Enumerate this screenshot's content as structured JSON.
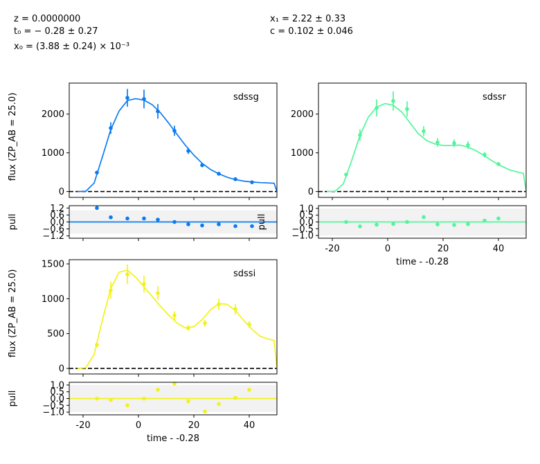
{
  "params": {
    "z": "z = 0.0000000",
    "t0": "t₀ = − 0.28 ± 0.27",
    "x0": "x₀ = (3.88 ± 0.24) × 10⁻³",
    "x1": "x₁ = 2.22 ± 0.33",
    "c": "c = 0.102 ± 0.046"
  },
  "colors": {
    "sdssg": "#0a7bf0",
    "sdssr": "#52f59b",
    "sdssi": "#f2f21a"
  },
  "chart_data": [
    {
      "type": "scatter",
      "band": "sdssg",
      "title": "sdssg",
      "xlabel": "",
      "ylabel": "flux (ZP_AB = 25.0)",
      "xlim": [
        -25,
        50
      ],
      "ylim": [
        -150,
        2800
      ],
      "yticks": [
        0,
        1000,
        2000
      ],
      "points": [
        {
          "x": -15,
          "y": 490,
          "err": 40
        },
        {
          "x": -10,
          "y": 1640,
          "err": 150
        },
        {
          "x": -4,
          "y": 2420,
          "err": 230
        },
        {
          "x": 2,
          "y": 2390,
          "err": 240
        },
        {
          "x": 7,
          "y": 2070,
          "err": 190
        },
        {
          "x": 13,
          "y": 1570,
          "err": 130
        },
        {
          "x": 18,
          "y": 1050,
          "err": 80
        },
        {
          "x": 23,
          "y": 680,
          "err": 50
        },
        {
          "x": 29,
          "y": 460,
          "err": 30
        },
        {
          "x": 35,
          "y": 320,
          "err": 25
        },
        {
          "x": 41,
          "y": 240,
          "err": 20
        }
      ],
      "model": [
        [
          -22,
          0
        ],
        [
          -19,
          10
        ],
        [
          -16,
          220
        ],
        [
          -13,
          900
        ],
        [
          -10,
          1600
        ],
        [
          -7,
          2080
        ],
        [
          -4,
          2350
        ],
        [
          -1,
          2400
        ],
        [
          2,
          2360
        ],
        [
          5,
          2240
        ],
        [
          8,
          2030
        ],
        [
          11,
          1760
        ],
        [
          14,
          1470
        ],
        [
          17,
          1190
        ],
        [
          20,
          940
        ],
        [
          23,
          730
        ],
        [
          26,
          570
        ],
        [
          29,
          460
        ],
        [
          32,
          370
        ],
        [
          35,
          310
        ],
        [
          38,
          270
        ],
        [
          41,
          245
        ],
        [
          44,
          230
        ],
        [
          47,
          222
        ],
        [
          49,
          215
        ],
        [
          50,
          0
        ]
      ],
      "pull": {
        "ylim": [
          -1.4,
          1.4
        ],
        "yticks": [
          1.2,
          0.6,
          0.0,
          -0.6,
          -1.2
        ],
        "ytick_labels": [
          "1.2",
          "0.6",
          "0.0",
          "−0.6",
          "−1.2"
        ],
        "values": [
          1.2,
          0.4,
          0.3,
          0.3,
          0.2,
          0.0,
          -0.2,
          -0.3,
          -0.2,
          -0.36,
          -0.36
        ]
      }
    },
    {
      "type": "scatter",
      "band": "sdssr",
      "title": "sdssr",
      "xlabel": "time - -0.28",
      "ylabel": "",
      "xlim": [
        -25,
        50
      ],
      "ylim": [
        -150,
        2800
      ],
      "yticks": [
        0,
        1000,
        2000
      ],
      "xticks": [
        -20,
        0,
        20,
        40
      ],
      "points": [
        {
          "x": -15,
          "y": 440,
          "err": 40
        },
        {
          "x": -10,
          "y": 1460,
          "err": 150
        },
        {
          "x": -4,
          "y": 2160,
          "err": 220
        },
        {
          "x": 2,
          "y": 2340,
          "err": 250
        },
        {
          "x": 7,
          "y": 2130,
          "err": 200
        },
        {
          "x": 13,
          "y": 1560,
          "err": 130
        },
        {
          "x": 18,
          "y": 1270,
          "err": 110
        },
        {
          "x": 24,
          "y": 1250,
          "err": 100
        },
        {
          "x": 29,
          "y": 1200,
          "err": 100
        },
        {
          "x": 35,
          "y": 950,
          "err": 70
        },
        {
          "x": 40,
          "y": 710,
          "err": 50
        }
      ],
      "model": [
        [
          -22,
          0
        ],
        [
          -19,
          10
        ],
        [
          -16,
          200
        ],
        [
          -13,
          800
        ],
        [
          -10,
          1450
        ],
        [
          -7,
          1920
        ],
        [
          -4,
          2180
        ],
        [
          -1,
          2270
        ],
        [
          2,
          2230
        ],
        [
          5,
          2060
        ],
        [
          8,
          1780
        ],
        [
          11,
          1500
        ],
        [
          14,
          1320
        ],
        [
          17,
          1230
        ],
        [
          20,
          1190
        ],
        [
          23,
          1190
        ],
        [
          26,
          1200
        ],
        [
          29,
          1150
        ],
        [
          32,
          1050
        ],
        [
          35,
          920
        ],
        [
          38,
          780
        ],
        [
          41,
          660
        ],
        [
          44,
          560
        ],
        [
          47,
          500
        ],
        [
          49,
          470
        ],
        [
          50,
          0
        ]
      ],
      "pull": {
        "ylim": [
          -1.2,
          1.2
        ],
        "yticks": [
          1.0,
          0.5,
          0.0,
          -0.5,
          -1.0
        ],
        "ytick_labels": [
          "1.0",
          "0.5",
          "0.0",
          "−0.5",
          "−1.0"
        ],
        "values": [
          0.0,
          -0.33,
          -0.2,
          -0.15,
          0.0,
          0.36,
          -0.18,
          -0.22,
          -0.16,
          0.1,
          0.26
        ]
      }
    },
    {
      "type": "scatter",
      "band": "sdssi",
      "title": "sdssi",
      "xlabel": "time - -0.28",
      "ylabel": "flux (ZP_AB = 25.0)",
      "xlim": [
        -25,
        50
      ],
      "ylim": [
        -80,
        1560
      ],
      "yticks": [
        0,
        500,
        1000,
        1500
      ],
      "xticks": [
        -20,
        0,
        20,
        40
      ],
      "points": [
        {
          "x": -15,
          "y": 340,
          "err": 35
        },
        {
          "x": -10,
          "y": 1120,
          "err": 120
        },
        {
          "x": -4,
          "y": 1350,
          "err": 140
        },
        {
          "x": 2,
          "y": 1210,
          "err": 120
        },
        {
          "x": 7,
          "y": 1080,
          "err": 100
        },
        {
          "x": 13,
          "y": 760,
          "err": 60
        },
        {
          "x": 18,
          "y": 580,
          "err": 40
        },
        {
          "x": 24,
          "y": 650,
          "err": 50
        },
        {
          "x": 29,
          "y": 920,
          "err": 80
        },
        {
          "x": 35,
          "y": 850,
          "err": 75
        },
        {
          "x": 40,
          "y": 630,
          "err": 50
        }
      ],
      "model": [
        [
          -22,
          0
        ],
        [
          -19,
          10
        ],
        [
          -16,
          200
        ],
        [
          -13,
          700
        ],
        [
          -10,
          1150
        ],
        [
          -7,
          1380
        ],
        [
          -4,
          1410
        ],
        [
          -1,
          1310
        ],
        [
          2,
          1170
        ],
        [
          5,
          1030
        ],
        [
          8,
          890
        ],
        [
          11,
          760
        ],
        [
          14,
          650
        ],
        [
          17,
          580
        ],
        [
          20,
          600
        ],
        [
          23,
          700
        ],
        [
          26,
          840
        ],
        [
          29,
          930
        ],
        [
          32,
          920
        ],
        [
          35,
          830
        ],
        [
          38,
          690
        ],
        [
          41,
          560
        ],
        [
          44,
          460
        ],
        [
          47,
          420
        ],
        [
          49,
          400
        ],
        [
          50,
          0
        ]
      ],
      "pull": {
        "ylim": [
          -1.2,
          1.2
        ],
        "yticks": [
          1.0,
          0.5,
          0.0,
          -0.5,
          -1.0
        ],
        "ytick_labels": [
          "1.0",
          "0.5",
          "0.0",
          "−0.5",
          "−1.0"
        ],
        "values": [
          0.0,
          -0.1,
          -0.5,
          0.0,
          0.65,
          1.1,
          -0.2,
          -0.95,
          -0.4,
          0.05,
          0.65
        ]
      }
    }
  ]
}
